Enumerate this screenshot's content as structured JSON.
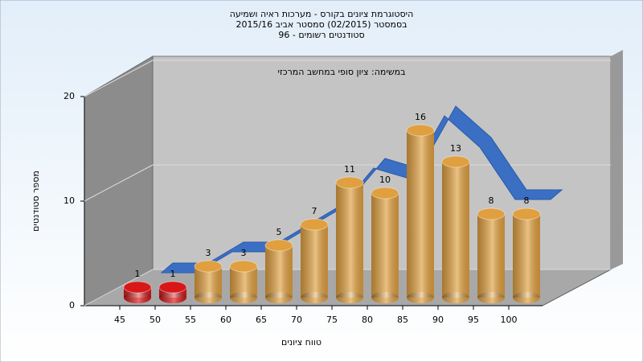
{
  "chart_data": {
    "type": "bar3d",
    "title": [
      "היסטוגרמת ציונים בקורס - מערכות ראיה ושמיעה",
      "בסמסטר  (02/2015)  סמסטר אביב 2015/16",
      "סטודנטים רשומים - 96"
    ],
    "subtitle": "במשימה: ציון סופי במחשב המרכזי",
    "x_label": "טווח ציונים",
    "y_label": "מספר סטודנטים",
    "categories": [
      "45",
      "50",
      "55",
      "60",
      "65",
      "70",
      "75",
      "80",
      "85",
      "90",
      "95",
      "100"
    ],
    "values": [
      1,
      1,
      3,
      3,
      5,
      7,
      11,
      10,
      16,
      13,
      8,
      8
    ],
    "colors": [
      "#d81818",
      "#d81818",
      "#e0a040",
      "#e0a040",
      "#e0a040",
      "#e0a040",
      "#e0a040",
      "#e0a040",
      "#e0a040",
      "#e0a040",
      "#e0a040",
      "#e0a040"
    ],
    "trend_color": "#3a6fc4",
    "ylim": [
      0,
      20
    ],
    "yticks": [
      0,
      10,
      20
    ],
    "grid": true
  }
}
